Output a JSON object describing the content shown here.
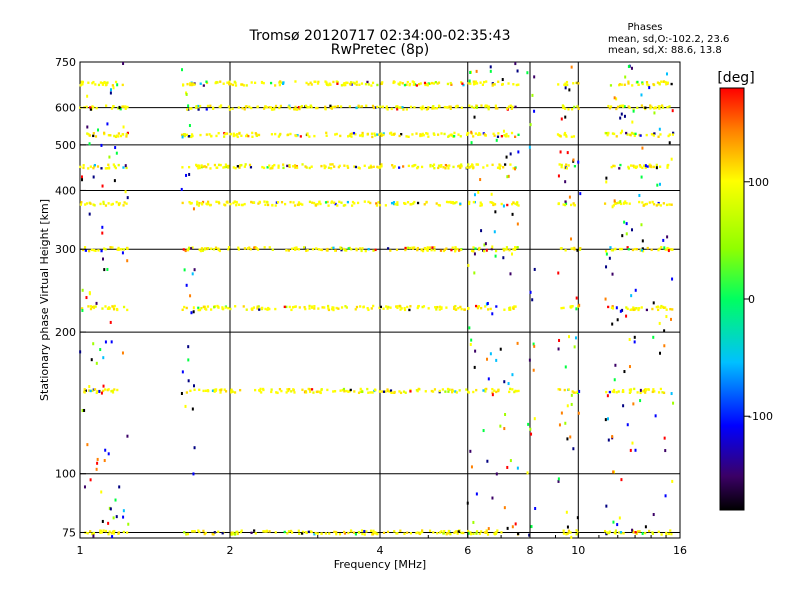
{
  "header": {
    "title": "Tromsø 20120717 02:34:00-02:35:43",
    "subtitle": "RwPretec (8p)",
    "phases_label": "Phases",
    "phase_o": "mean, sd,O:-102.2, 23.6",
    "phase_x": "mean, sd,X:  88.6, 13.8"
  },
  "colorbar": {
    "label": "[deg]",
    "ticks": [
      "100",
      "0",
      "-100"
    ],
    "tick_values": [
      100,
      0,
      -100
    ],
    "range": [
      -180,
      180
    ]
  },
  "chart_data": {
    "type": "scatter",
    "title": "Tromsø 20120717 02:34:00-02:35:43",
    "subtitle": "RwPretec (8p)",
    "xlabel": "Frequency [MHz]",
    "ylabel": "Stationary phase Virtual Height [km]",
    "xscale": "log",
    "yscale": "log",
    "xlim": [
      1,
      16
    ],
    "ylim": [
      73,
      750
    ],
    "x_ticks": [
      1,
      2,
      4,
      6,
      8,
      10,
      16
    ],
    "x_tick_labels": [
      "1",
      "2",
      "4",
      "6",
      "8",
      "10",
      "16"
    ],
    "y_ticks": [
      75,
      100,
      200,
      300,
      400,
      500,
      600,
      750
    ],
    "y_tick_labels": [
      "75",
      "100",
      "200",
      "300",
      "400",
      "500",
      "600",
      "750"
    ],
    "grid": true,
    "echo_heights": [
      75,
      150,
      225,
      300,
      375,
      450,
      525,
      600,
      675
    ],
    "frequency_bands": [
      [
        1.0,
        1.25
      ],
      [
        1.6,
        6.0
      ],
      [
        6.0,
        7.6
      ],
      [
        9.1,
        10.1
      ],
      [
        11.3,
        15.5
      ]
    ],
    "dominant_phase_deg": 100,
    "color_scale": "rainbow, black (-180) to red (+180)"
  }
}
